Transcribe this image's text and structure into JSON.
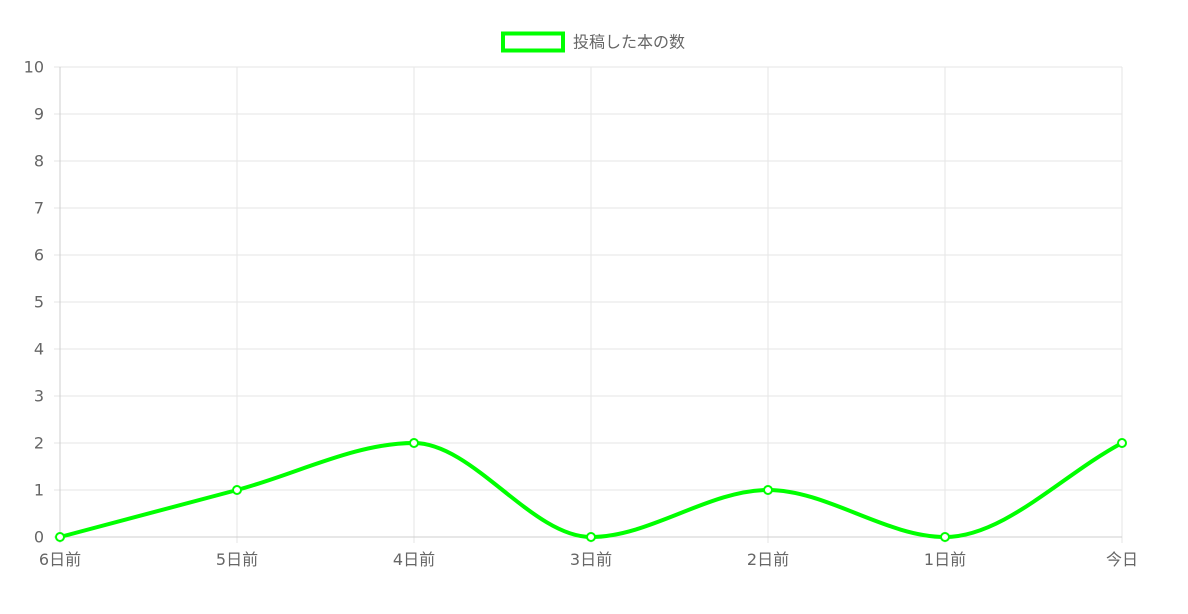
{
  "chart_data": {
    "type": "line",
    "categories": [
      "6日前",
      "5日前",
      "4日前",
      "3日前",
      "2日前",
      "1日前",
      "今日"
    ],
    "series": [
      {
        "name": "投稿した本の数",
        "values": [
          0,
          1,
          2,
          0,
          1,
          0,
          2
        ],
        "color": "#00ff00"
      }
    ],
    "yticks": [
      "0",
      "1",
      "2",
      "3",
      "4",
      "5",
      "6",
      "7",
      "8",
      "9",
      "10"
    ],
    "ylim": [
      0,
      10
    ],
    "grid": true,
    "legend_position": "top-center",
    "smooth": true
  }
}
